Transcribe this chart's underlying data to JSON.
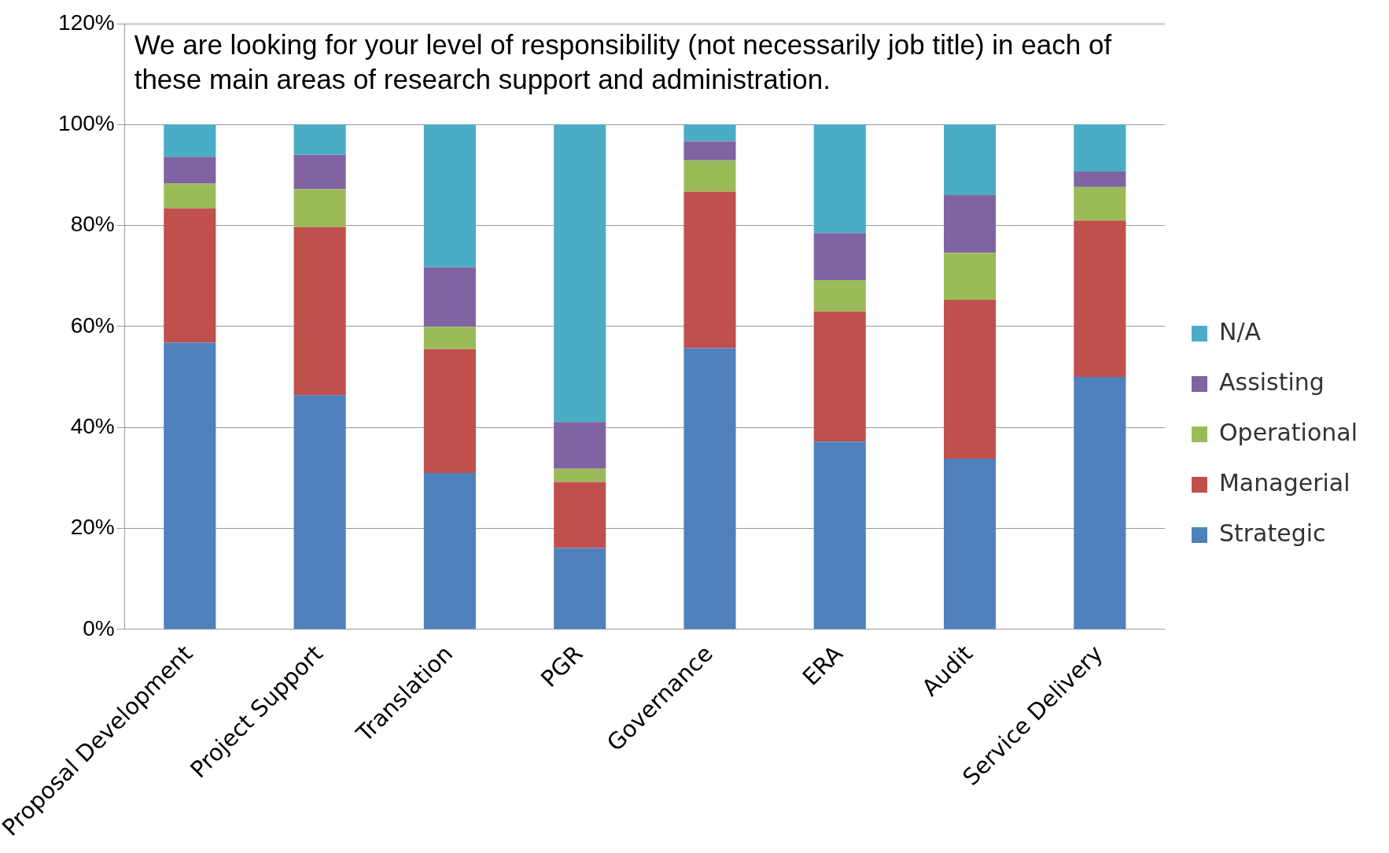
{
  "chart_data": {
    "type": "bar",
    "stacked": true,
    "title": "We are looking for your level of responsibility (not necessarily job title) in each of these main areas of research support and administration.",
    "categories": [
      "Proposal Development",
      "Project Support",
      "Translation",
      "PGR",
      "Governance",
      "ERA",
      "Audit",
      "Service Delivery"
    ],
    "series": [
      {
        "name": "Strategic",
        "color": "#4f81bd",
        "values": [
          56.8,
          46.4,
          31.0,
          16.1,
          55.7,
          37.2,
          33.8,
          50.0
        ]
      },
      {
        "name": "Managerial",
        "color": "#c0504d",
        "values": [
          26.6,
          33.3,
          24.5,
          13.1,
          31.0,
          25.8,
          31.5,
          31.0
        ]
      },
      {
        "name": "Operational",
        "color": "#9bbb59",
        "values": [
          4.9,
          7.5,
          4.4,
          2.6,
          6.2,
          6.2,
          9.3,
          6.6
        ]
      },
      {
        "name": "Assisting",
        "color": "#8064a2",
        "values": [
          5.3,
          6.8,
          11.8,
          9.3,
          3.8,
          9.3,
          11.4,
          3.1
        ]
      },
      {
        "name": "N/A",
        "color": "#4bacc6",
        "values": [
          6.4,
          6.0,
          28.3,
          58.9,
          3.3,
          21.5,
          14.0,
          9.3
        ]
      }
    ],
    "ylim": [
      0,
      120
    ],
    "yticks": [
      {
        "value": 0,
        "label": "0%"
      },
      {
        "value": 20,
        "label": "20%"
      },
      {
        "value": 40,
        "label": "40%"
      },
      {
        "value": 60,
        "label": "60%"
      },
      {
        "value": 80,
        "label": "80%"
      },
      {
        "value": 100,
        "label": "100%"
      },
      {
        "value": 120,
        "label": "120%"
      }
    ],
    "grid": "y",
    "legend": "right"
  }
}
